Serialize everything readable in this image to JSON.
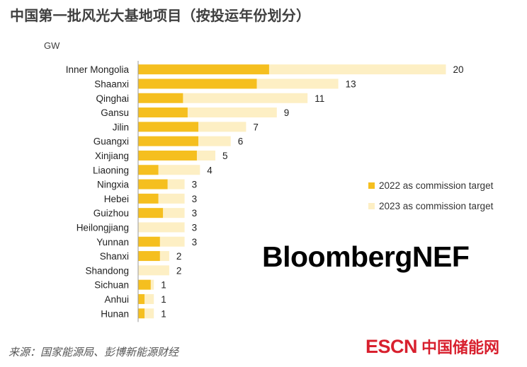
{
  "title": "中国第一批风光大基地项目（按投运年份划分）",
  "unit": "GW",
  "colors": {
    "target_2022": "#f5bf1f",
    "target_2023": "#fdefc4",
    "text": "#404040",
    "axis": "#9a9a9a"
  },
  "legend": {
    "items": [
      {
        "label": "2022 as commission target",
        "color": "#f5bf1f"
      },
      {
        "label": "2023 as commission target",
        "color": "#fdefc4"
      }
    ]
  },
  "watermark": "BloombergNEF",
  "source": "来源：国家能源局、彭博新能源财经",
  "logo": {
    "latin": "ESCN",
    "chinese": "中国储能网"
  },
  "chart_data": {
    "type": "bar",
    "orientation": "horizontal",
    "stacked": true,
    "title": "中国第一批风光大基地项目（按投运年份划分）",
    "ylabel": "GW",
    "xlim": [
      0,
      20
    ],
    "grid": false,
    "legend_position": "right",
    "categories": [
      "Inner Mongolia",
      "Shaanxi",
      "Qinghai",
      "Gansu",
      "Jilin",
      "Guangxi",
      "Xinjiang",
      "Liaoning",
      "Ningxia",
      "Hebei",
      "Guizhou",
      "Heilongjiang",
      "Yunnan",
      "Shanxi",
      "Shandong",
      "Sichuan",
      "Anhui",
      "Hunan"
    ],
    "series": [
      {
        "name": "2022 as commission target",
        "values": [
          8.5,
          7.7,
          2.9,
          3.2,
          3.9,
          3.9,
          3.8,
          1.3,
          1.9,
          1.3,
          1.6,
          0,
          1.4,
          1.4,
          0,
          0.8,
          0.4,
          0.4
        ]
      },
      {
        "name": "2023 as commission target",
        "values": [
          11.5,
          5.3,
          8.1,
          5.8,
          3.1,
          2.1,
          1.2,
          2.7,
          1.1,
          1.7,
          1.4,
          3,
          1.6,
          0.6,
          2,
          0.2,
          0.6,
          0.6
        ]
      }
    ],
    "totals": [
      20,
      13,
      11,
      9,
      7,
      6,
      5,
      4,
      3,
      3,
      3,
      3,
      3,
      2,
      2,
      1,
      1,
      1
    ]
  }
}
